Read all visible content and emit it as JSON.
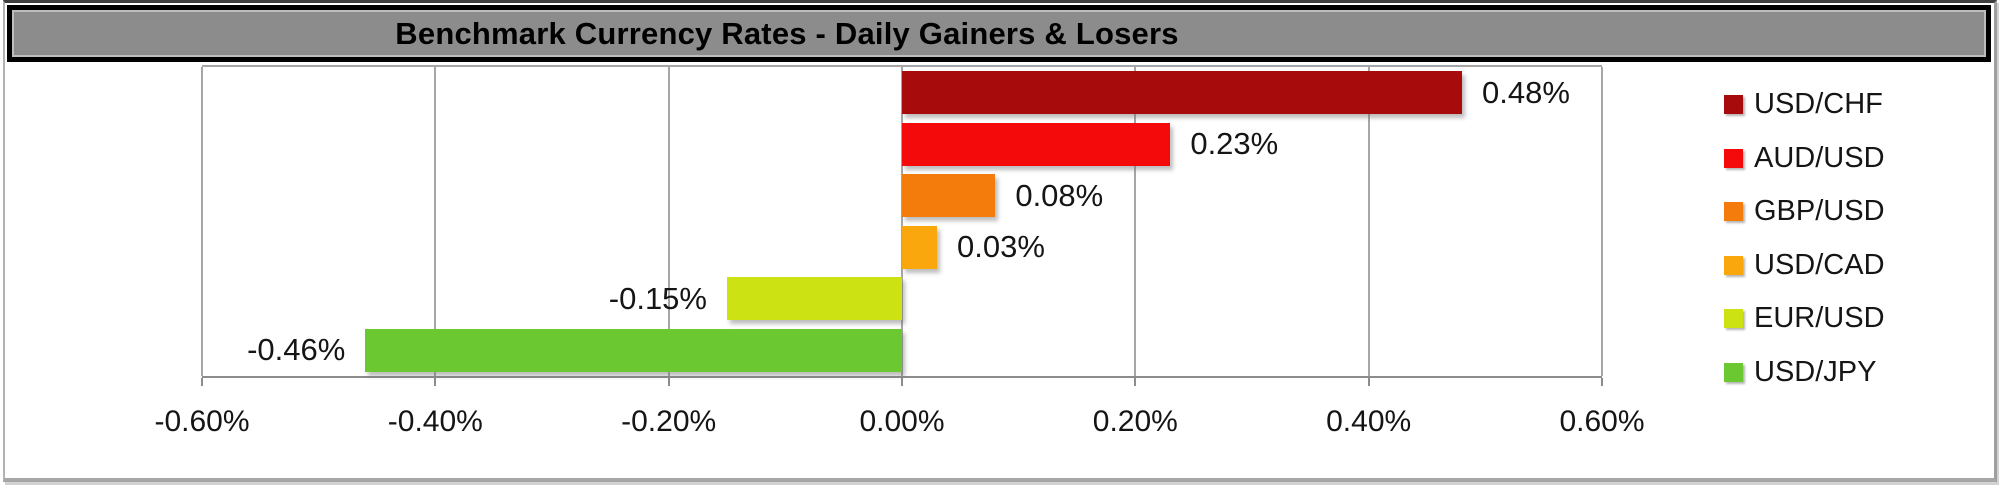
{
  "chart": {
    "title": "Benchmark Currency Rates - Daily Gainers & Losers"
  },
  "chart_data": {
    "type": "bar",
    "orientation": "horizontal",
    "title": "Benchmark Currency Rates - Daily Gainers & Losers",
    "categories": [
      "USD/CHF",
      "AUD/USD",
      "GBP/USD",
      "USD/CAD",
      "EUR/USD",
      "USD/JPY"
    ],
    "values": [
      0.48,
      0.23,
      0.08,
      0.03,
      -0.15,
      -0.46
    ],
    "value_labels": [
      "0.48%",
      "0.23%",
      "0.08%",
      "0.03%",
      "-0.15%",
      "-0.46%"
    ],
    "series_colors": [
      "#A70B0C",
      "#F40A0A",
      "#F47C0C",
      "#FAA70D",
      "#CCE212",
      "#6CC830"
    ],
    "x_tick_labels": [
      "-0.60%",
      "-0.40%",
      "-0.20%",
      "0.00%",
      "0.20%",
      "0.40%",
      "0.60%"
    ],
    "x_tick_values": [
      -0.6,
      -0.4,
      -0.2,
      0.0,
      0.2,
      0.4,
      0.6
    ],
    "xlim": [
      -0.6,
      0.6
    ],
    "grid": true,
    "legend_position": "right",
    "styles": {
      "title_bar_bg": "#8C8C8C",
      "title_bar_border": "#000000",
      "gridline_color": "#A6A6A6",
      "axis_line_color": "#8C8C8C",
      "text_color": "#151515"
    }
  }
}
